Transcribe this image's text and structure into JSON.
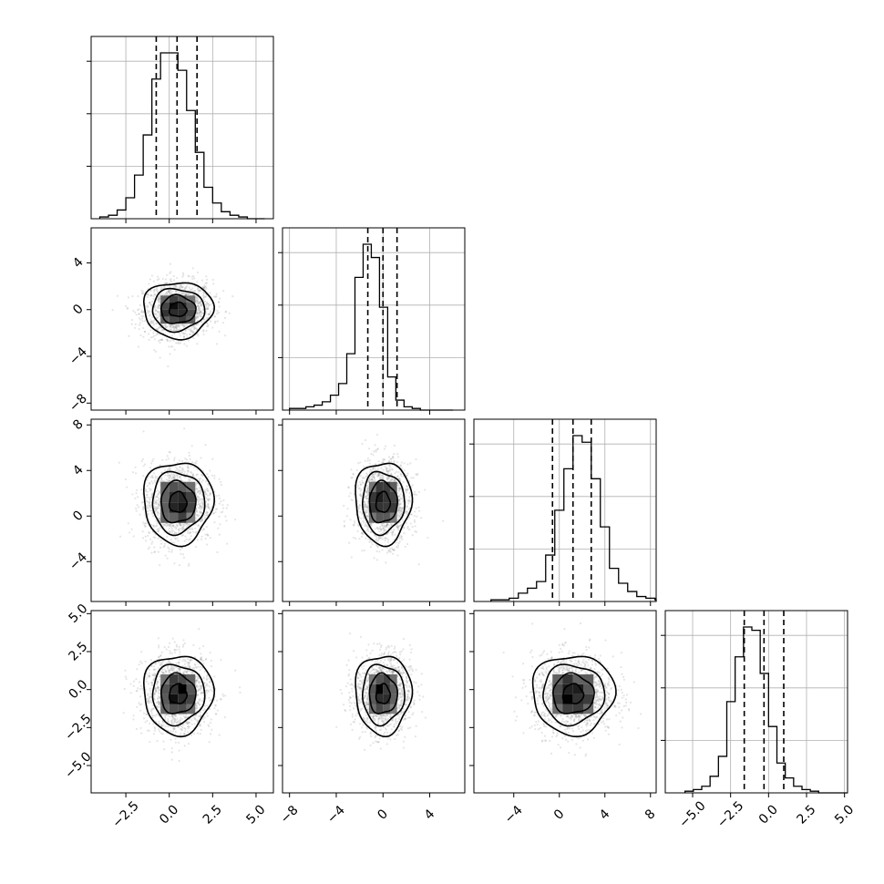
{
  "chart_data": {
    "type": "corner",
    "dims": [
      {
        "index": 0,
        "ticks": [
          -2.5,
          0.0,
          2.5,
          5.0
        ],
        "tick_labels": [
          "−2.5",
          "0.0",
          "2.5",
          "5.0"
        ],
        "range": [
          -4.5,
          6.0
        ],
        "center": 0.5,
        "sigma": 1.0,
        "quantiles": [
          -0.75,
          0.45,
          1.6
        ]
      },
      {
        "index": 1,
        "ticks": [
          -8,
          -4,
          0,
          4
        ],
        "tick_labels": [
          "−8",
          "−4",
          "0",
          "4"
        ],
        "range": [
          -8.6,
          7.0
        ],
        "center": 0.0,
        "sigma": 1.2,
        "quantiles": [
          -1.3,
          0.0,
          1.2
        ]
      },
      {
        "index": 2,
        "ticks": [
          -4,
          0,
          4,
          8
        ],
        "tick_labels": [
          "−4",
          "0",
          "4",
          "8"
        ],
        "range": [
          -7.5,
          8.5
        ],
        "center": 1.2,
        "sigma": 1.8,
        "quantiles": [
          -0.6,
          1.2,
          2.8
        ]
      },
      {
        "index": 3,
        "ticks": [
          -5.0,
          -2.5,
          0.0,
          2.5,
          5.0
        ],
        "tick_labels": [
          "−5.0",
          "−2.5",
          "0.0",
          "2.5",
          "5.0"
        ],
        "range": [
          -6.8,
          5.2
        ],
        "center": -0.3,
        "sigma": 1.3,
        "quantiles": [
          -1.6,
          -0.3,
          1.0
        ]
      }
    ],
    "histograms": [
      {
        "dim": 0,
        "bin_edges_start": -4.0,
        "bin_width": 0.5,
        "counts": [
          1,
          2,
          5,
          12,
          25,
          48,
          80,
          95,
          95,
          85,
          62,
          38,
          18,
          9,
          4,
          2,
          1,
          0,
          0
        ]
      },
      {
        "dim": 1,
        "bin_edges_start": -8.0,
        "bin_width": 0.7,
        "counts": [
          1,
          1,
          2,
          3,
          5,
          9,
          16,
          34,
          80,
          100,
          92,
          62,
          20,
          6,
          2,
          1,
          0,
          0,
          0,
          0
        ]
      },
      {
        "dim": 2,
        "bin_edges_start": -6.0,
        "bin_width": 0.8,
        "counts": [
          1,
          1,
          2,
          5,
          8,
          12,
          28,
          55,
          80,
          100,
          96,
          74,
          45,
          20,
          11,
          6,
          3,
          2,
          1
        ]
      },
      {
        "dim": 3,
        "bin_edges_start": -5.5,
        "bin_width": 0.55,
        "counts": [
          1,
          2,
          4,
          10,
          22,
          55,
          82,
          100,
          98,
          72,
          40,
          18,
          9,
          4,
          2,
          1,
          0,
          0,
          0,
          0
        ]
      }
    ],
    "pairs": [
      {
        "x": 0,
        "y": 1,
        "corr": 0.05
      },
      {
        "x": 0,
        "y": 2,
        "corr": 0.05
      },
      {
        "x": 1,
        "y": 2,
        "corr": 0.0
      },
      {
        "x": 0,
        "y": 3,
        "corr": 0.0
      },
      {
        "x": 1,
        "y": 3,
        "corr": 0.05
      },
      {
        "x": 2,
        "y": 3,
        "corr": 0.0
      }
    ],
    "contour_levels_sigma": [
      0.5,
      1.0,
      1.5,
      2.0
    ],
    "grid": true
  }
}
